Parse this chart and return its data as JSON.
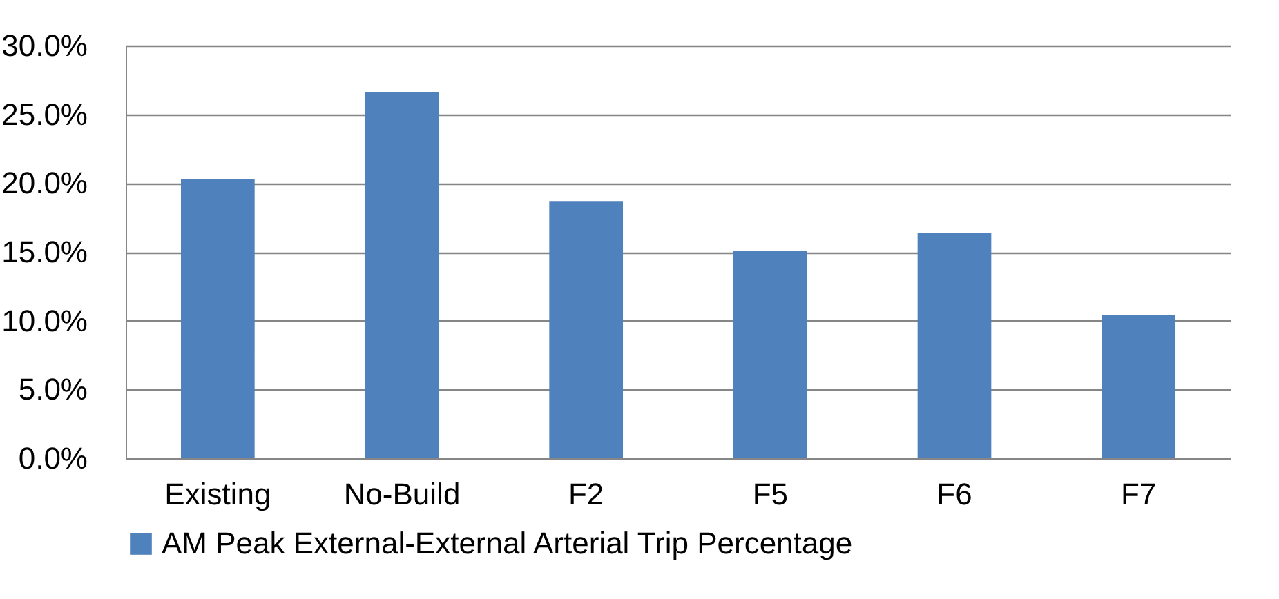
{
  "chart_data": {
    "type": "bar",
    "categories": [
      "Existing",
      "No-Build",
      "F2",
      "F5",
      "F6",
      "F7"
    ],
    "series": [
      {
        "name": "AM Peak External-External Arterial Trip Percentage",
        "color": "#4f81bd",
        "values": [
          20.3,
          26.6,
          18.7,
          15.1,
          16.4,
          10.4
        ]
      }
    ],
    "ylim": [
      0,
      30
    ],
    "yticks": [
      {
        "value": 0,
        "label": "0.0%"
      },
      {
        "value": 5,
        "label": "5.0%"
      },
      {
        "value": 10,
        "label": "10.0%"
      },
      {
        "value": 15,
        "label": "15.0%"
      },
      {
        "value": 20,
        "label": "20.0%"
      },
      {
        "value": 25,
        "label": "25.0%"
      },
      {
        "value": 30,
        "label": "30.0%"
      }
    ],
    "grid": "y",
    "legend": "bottom"
  }
}
